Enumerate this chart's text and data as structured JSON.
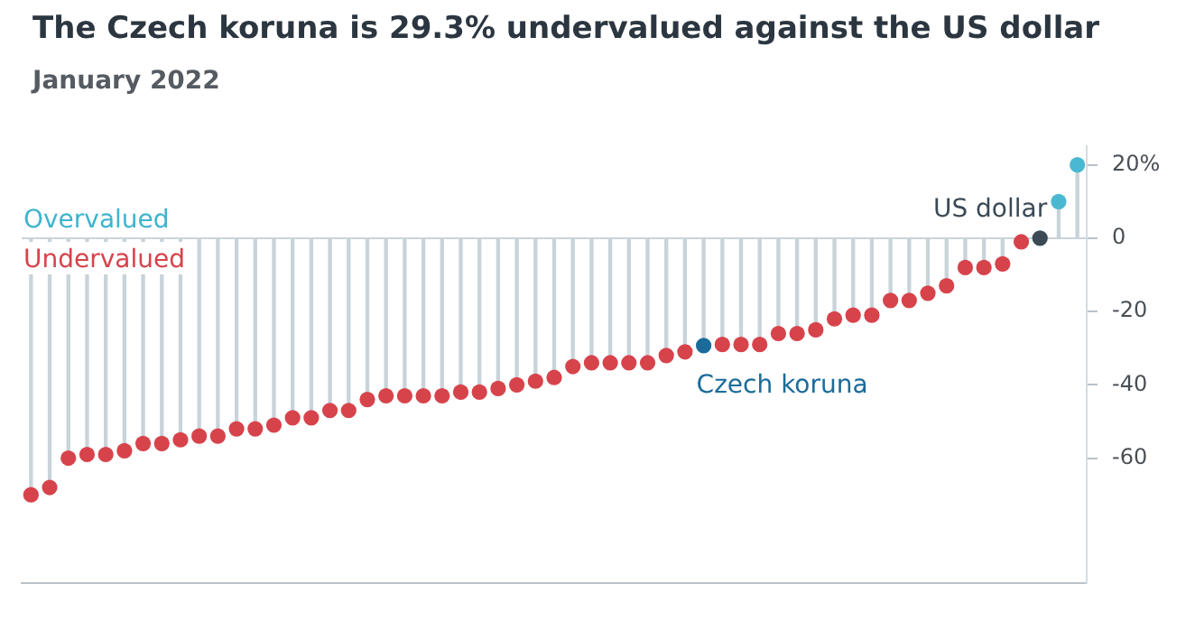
{
  "chart_data": {
    "type": "lollipop",
    "title": "The Czech koruna is 29.3% undervalued against the US dollar",
    "subtitle": "January 2022",
    "categories": [
      null,
      null,
      null,
      null,
      null,
      null,
      null,
      null,
      null,
      null,
      null,
      null,
      null,
      null,
      null,
      null,
      null,
      null,
      null,
      null,
      null,
      null,
      null,
      null,
      null,
      null,
      null,
      null,
      null,
      null,
      null,
      null,
      null,
      null,
      null,
      null,
      null,
      null,
      null,
      null,
      null,
      null,
      null,
      null,
      null,
      null,
      null,
      null,
      null,
      null,
      null,
      null,
      null,
      null,
      null,
      null,
      null
    ],
    "values": [
      -70,
      -68,
      -60,
      -59,
      -59,
      -58,
      -56,
      -56,
      -55,
      -54,
      -54,
      -52,
      -52,
      -51,
      -49,
      -49,
      -47,
      -47,
      -44,
      -43,
      -43,
      -43,
      -43,
      -42,
      -42,
      -41,
      -40,
      -39,
      -38,
      -35,
      -34,
      -34,
      -34,
      -34,
      -32,
      -31,
      -29.3,
      -29,
      -29,
      -29,
      -26,
      -26,
      -25,
      -22,
      -21,
      -21,
      -17,
      -17,
      -15,
      -13,
      -8,
      -8,
      -7,
      -1,
      0,
      10,
      20
    ],
    "colors": [
      "#d7434b",
      "#d7434b",
      "#d7434b",
      "#d7434b",
      "#d7434b",
      "#d7434b",
      "#d7434b",
      "#d7434b",
      "#d7434b",
      "#d7434b",
      "#d7434b",
      "#d7434b",
      "#d7434b",
      "#d7434b",
      "#d7434b",
      "#d7434b",
      "#d7434b",
      "#d7434b",
      "#d7434b",
      "#d7434b",
      "#d7434b",
      "#d7434b",
      "#d7434b",
      "#d7434b",
      "#d7434b",
      "#d7434b",
      "#d7434b",
      "#d7434b",
      "#d7434b",
      "#d7434b",
      "#d7434b",
      "#d7434b",
      "#d7434b",
      "#d7434b",
      "#d7434b",
      "#d7434b",
      "#1a6b9a",
      "#d7434b",
      "#d7434b",
      "#d7434b",
      "#d7434b",
      "#d7434b",
      "#d7434b",
      "#d7434b",
      "#d7434b",
      "#d7434b",
      "#d7434b",
      "#d7434b",
      "#d7434b",
      "#d7434b",
      "#d7434b",
      "#d7434b",
      "#d7434b",
      "#d7434b",
      "#3b4a55",
      "#4bb8d1",
      "#4bb8d1"
    ],
    "ylim": [
      -94,
      25
    ],
    "yticks": [
      {
        "value": 20,
        "label": "20%"
      },
      0,
      -20,
      -40,
      -60
    ],
    "annotations": [
      "Overvalued",
      "Undervalued",
      "Czech koruna",
      "US dollar"
    ],
    "ref_lines": [
      {
        "axis": "y",
        "value": 0
      }
    ],
    "grid": false,
    "legend": false,
    "marker": "circle",
    "tick_labels": "y"
  }
}
